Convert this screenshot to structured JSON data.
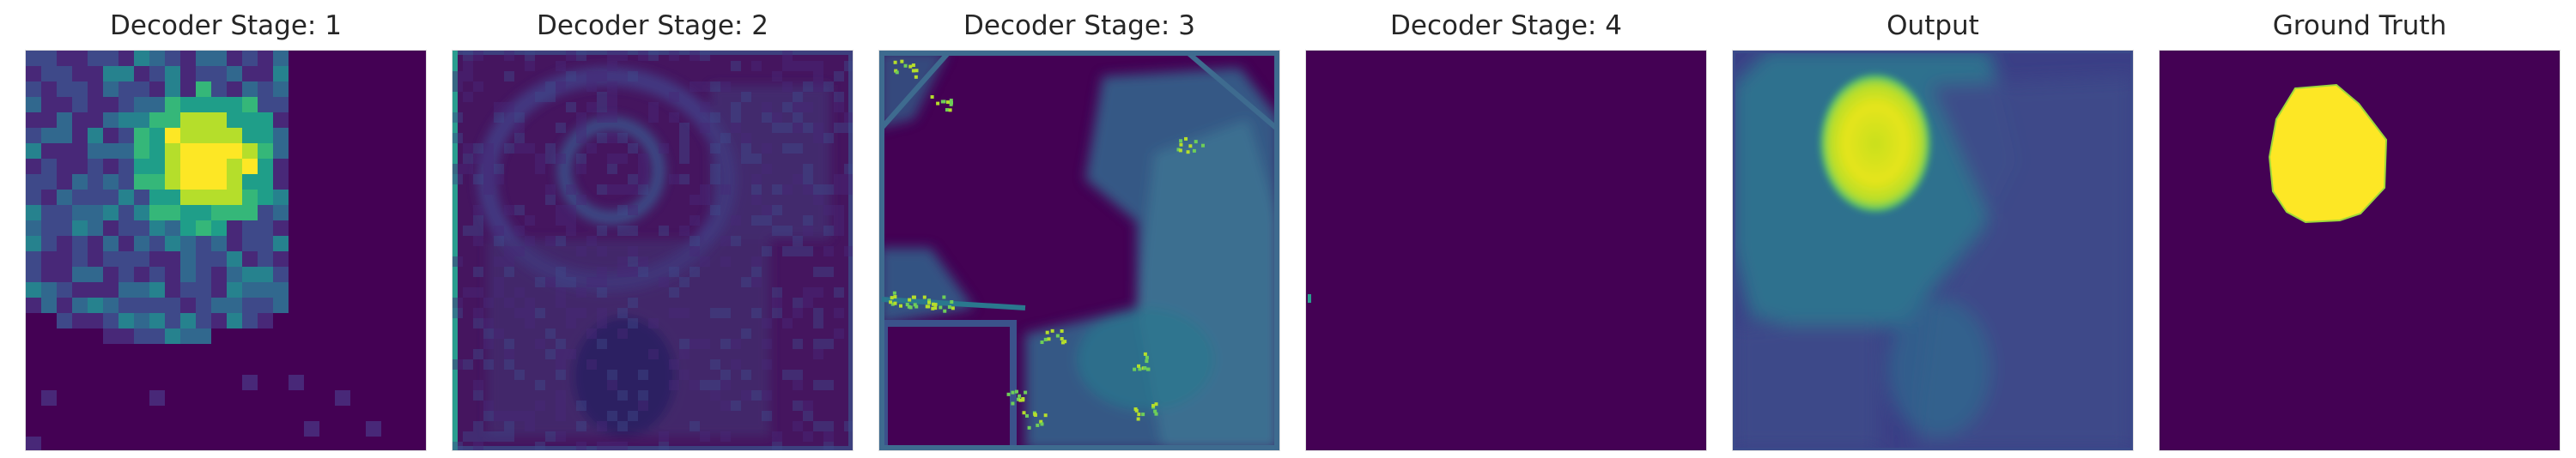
{
  "panels": [
    {
      "title": "Decoder Stage: 1"
    },
    {
      "title": "Decoder Stage: 2"
    },
    {
      "title": "Decoder Stage: 3"
    },
    {
      "title": "Decoder Stage: 4"
    },
    {
      "title": "Output"
    },
    {
      "title": "Ground Truth"
    }
  ],
  "colormap": "viridis",
  "colors": {
    "background": "#440154",
    "low": "#3b528b",
    "mid": "#21918c",
    "high": "#5ec962",
    "max": "#fde725"
  }
}
